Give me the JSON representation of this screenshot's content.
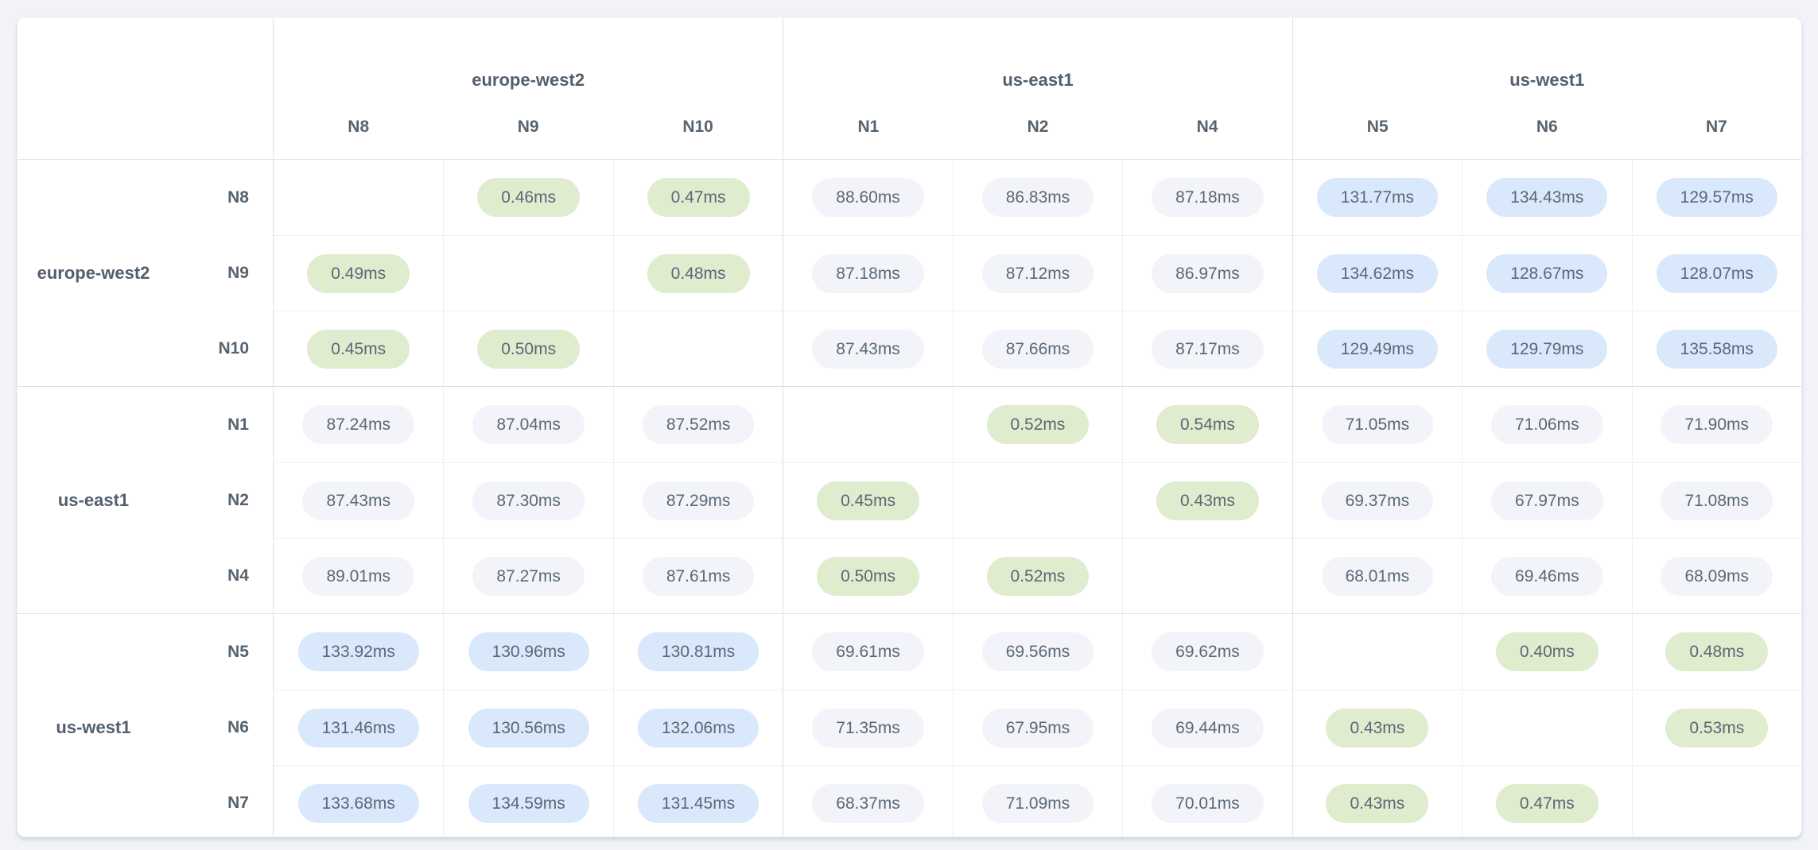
{
  "unit": "ms",
  "colors": {
    "intra_region_pill": "#dfeccd",
    "mid_latency_pill": "#f2f4f9",
    "high_latency_pill": "#d9e9fb",
    "value_text": "#5a6878",
    "header_text": "#535f6e",
    "page_background": "#f1f3f8",
    "card_background": "#ffffff"
  },
  "tiers": {
    "intra_max": 1,
    "high_min": 100
  },
  "column_groups": [
    {
      "region": "europe-west2",
      "nodes": [
        "N8",
        "N9",
        "N10"
      ]
    },
    {
      "region": "us-east1",
      "nodes": [
        "N1",
        "N2",
        "N4"
      ]
    },
    {
      "region": "us-west1",
      "nodes": [
        "N5",
        "N6",
        "N7"
      ]
    }
  ],
  "row_groups": [
    {
      "region": "europe-west2",
      "rows": [
        {
          "node": "N8",
          "values": [
            "",
            "0.46ms",
            "0.47ms",
            "88.60ms",
            "86.83ms",
            "87.18ms",
            "131.77ms",
            "134.43ms",
            "129.57ms"
          ]
        },
        {
          "node": "N9",
          "values": [
            "0.49ms",
            "",
            "0.48ms",
            "87.18ms",
            "87.12ms",
            "86.97ms",
            "134.62ms",
            "128.67ms",
            "128.07ms"
          ]
        },
        {
          "node": "N10",
          "values": [
            "0.45ms",
            "0.50ms",
            "",
            "87.43ms",
            "87.66ms",
            "87.17ms",
            "129.49ms",
            "129.79ms",
            "135.58ms"
          ]
        }
      ]
    },
    {
      "region": "us-east1",
      "rows": [
        {
          "node": "N1",
          "values": [
            "87.24ms",
            "87.04ms",
            "87.52ms",
            "",
            "0.52ms",
            "0.54ms",
            "71.05ms",
            "71.06ms",
            "71.90ms"
          ]
        },
        {
          "node": "N2",
          "values": [
            "87.43ms",
            "87.30ms",
            "87.29ms",
            "0.45ms",
            "",
            "0.43ms",
            "69.37ms",
            "67.97ms",
            "71.08ms"
          ]
        },
        {
          "node": "N4",
          "values": [
            "89.01ms",
            "87.27ms",
            "87.61ms",
            "0.50ms",
            "0.52ms",
            "",
            "68.01ms",
            "69.46ms",
            "68.09ms"
          ]
        }
      ]
    },
    {
      "region": "us-west1",
      "rows": [
        {
          "node": "N5",
          "values": [
            "133.92ms",
            "130.96ms",
            "130.81ms",
            "69.61ms",
            "69.56ms",
            "69.62ms",
            "",
            "0.40ms",
            "0.48ms"
          ]
        },
        {
          "node": "N6",
          "values": [
            "131.46ms",
            "130.56ms",
            "132.06ms",
            "71.35ms",
            "67.95ms",
            "69.44ms",
            "0.43ms",
            "",
            "0.53ms"
          ]
        },
        {
          "node": "N7",
          "values": [
            "133.68ms",
            "134.59ms",
            "131.45ms",
            "68.37ms",
            "71.09ms",
            "70.01ms",
            "0.43ms",
            "0.47ms",
            ""
          ]
        }
      ]
    }
  ]
}
